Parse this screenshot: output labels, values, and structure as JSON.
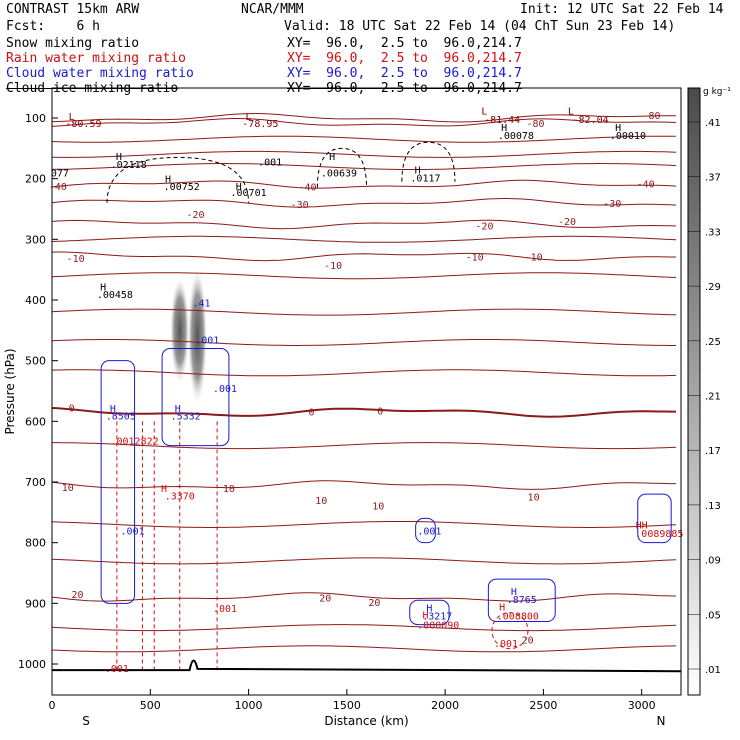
{
  "header": {
    "model": "CONTRAST 15km ARW",
    "org": "NCAR/MMM",
    "init": "Init: 12 UTC Sat 22 Feb 14",
    "fcst": "Fcst:    6 h",
    "valid": "Valid: 18 UTC Sat 22 Feb 14 (04 ChT Sun 23 Feb 14)",
    "fields": [
      {
        "name": "Snow mixing ratio",
        "xy": "XY=  96.0,  2.5 to  96.0,214.7",
        "color": "#000000"
      },
      {
        "name": "Rain water mixing ratio",
        "xy": "XY=  96.0,  2.5 to  96.0,214.7",
        "color": "#d01010"
      },
      {
        "name": "Cloud water mixing ratio",
        "xy": "XY=  96.0,  2.5 to  96.0,214.7",
        "color": "#1a1ad0"
      },
      {
        "name": "Cloud ice mixing ratio",
        "xy": "XY=  96.0,  2.5 to  96.0,214.7",
        "color": "#000000"
      }
    ]
  },
  "chart_data": {
    "type": "cross-section contour",
    "xlabel": "Distance (km)",
    "ylabel": "Pressure (hPa)",
    "xlim": [
      0,
      3200
    ],
    "ylim": [
      1050,
      60
    ],
    "xticks": [
      0,
      500,
      1000,
      1500,
      2000,
      2500,
      3000
    ],
    "yticks": [
      100,
      200,
      300,
      400,
      500,
      600,
      700,
      800,
      900,
      1000
    ],
    "endpoints": {
      "left": "S",
      "right": "N"
    },
    "colorbar": {
      "unit": "g kg⁻¹",
      "levels": [
        ".01",
        ".05",
        ".09",
        ".13",
        ".17",
        ".21",
        ".25",
        ".29",
        ".33",
        ".37",
        ".41"
      ]
    },
    "temperature_isotherms": [
      {
        "label": "-80",
        "p": 100
      },
      {
        "label": "-80",
        "p": 108
      },
      {
        "label": "-40",
        "p": 210
      },
      {
        "label": "-30",
        "p": 240
      },
      {
        "label": "-20",
        "p": 275
      },
      {
        "label": "-10",
        "p": 328
      },
      {
        "label": "0",
        "p": 585
      },
      {
        "label": "10",
        "p": 705
      },
      {
        "label": "20",
        "p": 890
      }
    ],
    "isotherm_label_text": [
      {
        "t": "-80",
        "x": 3050,
        "p": 95
      },
      {
        "t": "-80",
        "x": 2460,
        "p": 108
      },
      {
        "t": "-40",
        "x": 30,
        "p": 212
      },
      {
        "t": "-40",
        "x": 1300,
        "p": 213
      },
      {
        "t": "-40",
        "x": 3020,
        "p": 208
      },
      {
        "t": "-30",
        "x": 1260,
        "p": 242
      },
      {
        "t": "-30",
        "x": 2850,
        "p": 240
      },
      {
        "t": "-20",
        "x": 730,
        "p": 258
      },
      {
        "t": "-20",
        "x": 2200,
        "p": 277
      },
      {
        "t": "-20",
        "x": 2620,
        "p": 270
      },
      {
        "t": "-10",
        "x": 2150,
        "p": 328
      },
      {
        "t": "-10",
        "x": 2450,
        "p": 328
      },
      {
        "t": "-10",
        "x": 1430,
        "p": 342
      },
      {
        "t": "-10",
        "x": 120,
        "p": 331
      },
      {
        "t": "0",
        "x": 100,
        "p": 577
      },
      {
        "t": "0",
        "x": 1320,
        "p": 584
      },
      {
        "t": "0",
        "x": 1670,
        "p": 582
      },
      {
        "t": "10",
        "x": 80,
        "p": 708
      },
      {
        "t": "10",
        "x": 900,
        "p": 710
      },
      {
        "t": "10",
        "x": 1370,
        "p": 730
      },
      {
        "t": "10",
        "x": 1660,
        "p": 739
      },
      {
        "t": "10",
        "x": 2450,
        "p": 724
      },
      {
        "t": "20",
        "x": 130,
        "p": 885
      },
      {
        "t": "20",
        "x": 1390,
        "p": 890
      },
      {
        "t": "20",
        "x": 1640,
        "p": 898
      },
      {
        "t": "20",
        "x": 2420,
        "p": 960
      }
    ],
    "annotations": [
      {
        "t": "L",
        "x": 100,
        "p": 97,
        "c": "#8b0000"
      },
      {
        "t": "-80.59",
        "x": 160,
        "p": 108,
        "c": "#8b0000"
      },
      {
        "t": "L",
        "x": 1000,
        "p": 97,
        "c": "#8b0000"
      },
      {
        "t": "-78.95",
        "x": 1060,
        "p": 108,
        "c": "#8b0000"
      },
      {
        "t": "L",
        "x": 2200,
        "p": 88,
        "c": "#8b0000"
      },
      {
        "t": "-81.44",
        "x": 2290,
        "p": 102,
        "c": "#8b0000"
      },
      {
        "t": "L",
        "x": 2640,
        "p": 88,
        "c": "#8b0000"
      },
      {
        "t": "-82.04",
        "x": 2740,
        "p": 102,
        "c": "#8b0000"
      },
      {
        "t": "H",
        "x": 340,
        "p": 163,
        "c": "#000000"
      },
      {
        "t": ".02118",
        "x": 390,
        "p": 176,
        "c": "#000000"
      },
      {
        "t": ".001",
        "x": 1110,
        "p": 172,
        "c": "#000000"
      },
      {
        "t": "H",
        "x": 1425,
        "p": 163,
        "c": "#000000"
      },
      {
        "t": ".00639",
        "x": 1460,
        "p": 190,
        "c": "#000000"
      },
      {
        "t": "H",
        "x": 1860,
        "p": 185,
        "c": "#000000"
      },
      {
        "t": ".0117",
        "x": 1900,
        "p": 198,
        "c": "#000000"
      },
      {
        "t": "H",
        "x": 2300,
        "p": 115,
        "c": "#000000"
      },
      {
        "t": ".00078",
        "x": 2360,
        "p": 128,
        "c": "#000000"
      },
      {
        "t": "H",
        "x": 2880,
        "p": 115,
        "c": "#000000"
      },
      {
        "t": ".00010",
        "x": 2930,
        "p": 128,
        "c": "#000000"
      },
      {
        "t": "077",
        "x": 40,
        "p": 190,
        "c": "#000000"
      },
      {
        "t": "H",
        "x": 590,
        "p": 200,
        "c": "#000000"
      },
      {
        "t": ".00752",
        "x": 660,
        "p": 212,
        "c": "#000000"
      },
      {
        "t": "H",
        "x": 950,
        "p": 212,
        "c": "#000000"
      },
      {
        "t": ".00701",
        "x": 1000,
        "p": 222,
        "c": "#000000"
      },
      {
        "t": "H",
        "x": 260,
        "p": 378,
        "c": "#000000"
      },
      {
        "t": ".00458",
        "x": 320,
        "p": 390,
        "c": "#000000"
      },
      {
        "t": "H",
        "x": 310,
        "p": 578,
        "c": "#1a1ad0"
      },
      {
        "t": ".8505",
        "x": 350,
        "p": 590,
        "c": "#1a1ad0"
      },
      {
        "t": "H",
        "x": 640,
        "p": 578,
        "c": "#1a1ad0"
      },
      {
        "t": ".5332",
        "x": 680,
        "p": 590,
        "c": "#1a1ad0"
      },
      {
        "t": ".001",
        "x": 790,
        "p": 465,
        "c": "#1a1ad0"
      },
      {
        "t": ".001",
        "x": 880,
        "p": 545,
        "c": "#1a1ad0"
      },
      {
        "t": ".0012822",
        "x": 420,
        "p": 632,
        "c": "#d01010"
      },
      {
        "t": "H",
        "x": 570,
        "p": 710,
        "c": "#d01010"
      },
      {
        "t": ".3370",
        "x": 650,
        "p": 722,
        "c": "#d01010"
      },
      {
        "t": ".001",
        "x": 410,
        "p": 780,
        "c": "#1a1ad0"
      },
      {
        "t": ".001",
        "x": 880,
        "p": 908,
        "c": "#d01010"
      },
      {
        "t": ".001",
        "x": 330,
        "p": 1007,
        "c": "#d01010"
      },
      {
        "t": ".001",
        "x": 1920,
        "p": 780,
        "c": "#1a1ad0"
      },
      {
        "t": "H",
        "x": 1920,
        "p": 907,
        "c": "#1a1ad0"
      },
      {
        "t": ".3217",
        "x": 1960,
        "p": 920,
        "c": "#1a1ad0"
      },
      {
        "t": "H",
        "x": 1900,
        "p": 918,
        "c": "#d01010"
      },
      {
        "t": ".000090",
        "x": 1965,
        "p": 935,
        "c": "#d01010"
      },
      {
        "t": "H",
        "x": 2350,
        "p": 880,
        "c": "#1a1ad0"
      },
      {
        "t": ".8765",
        "x": 2390,
        "p": 893,
        "c": "#1a1ad0"
      },
      {
        "t": "H",
        "x": 2290,
        "p": 905,
        "c": "#d01010"
      },
      {
        "t": ".008800",
        "x": 2370,
        "p": 920,
        "c": "#d01010"
      },
      {
        "t": ".001",
        "x": 2310,
        "p": 965,
        "c": "#d01010"
      },
      {
        "t": "HH",
        "x": 3000,
        "p": 770,
        "c": "#d01010"
      },
      {
        "t": ".0089885",
        "x": 3090,
        "p": 784,
        "c": "#d01010"
      }
    ],
    "snow_max": {
      "x": 740,
      "p": 460,
      "value": ".41"
    }
  }
}
